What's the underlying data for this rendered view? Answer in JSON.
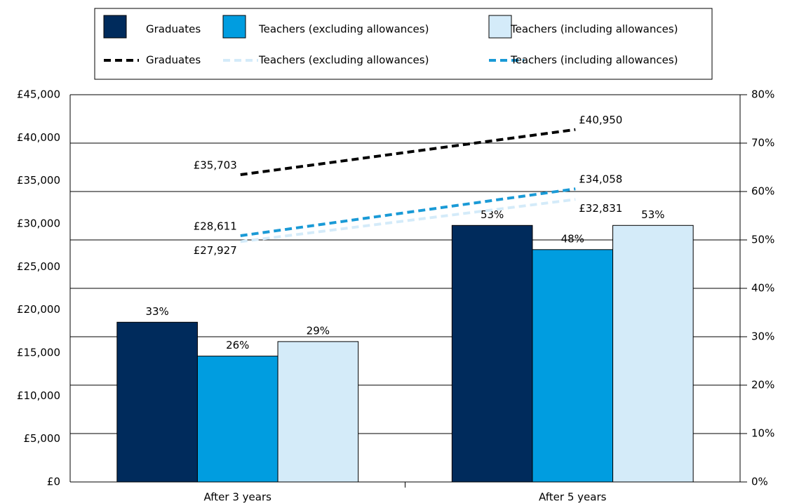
{
  "chart_data": {
    "type": "bar",
    "categories": [
      "After 3 years",
      "After 5 years"
    ],
    "series": [
      {
        "name": "Graduates",
        "type": "bar",
        "axis": "y2",
        "color": "#002b5c",
        "values": [
          33,
          53
        ],
        "value_labels": [
          "33%",
          "53%"
        ]
      },
      {
        "name": "Teachers (excluding allowances)",
        "type": "bar",
        "axis": "y2",
        "color": "#009de0",
        "values": [
          26,
          48
        ],
        "value_labels": [
          "26%",
          "48%"
        ]
      },
      {
        "name": "Teachers (including allowances)",
        "type": "bar",
        "axis": "y2",
        "color": "#d4ebf9",
        "values": [
          29,
          53
        ],
        "value_labels": [
          "29%",
          "53%"
        ]
      },
      {
        "name": "Graduates",
        "type": "line",
        "color": "#000000",
        "values": [
          35703,
          40950
        ],
        "value_labels": [
          "£35,703",
          "£40,950"
        ]
      },
      {
        "name": "Teachers (excluding allowances)",
        "type": "line",
        "color": "#d4ebf9",
        "values": [
          27927,
          32831
        ],
        "value_labels": [
          "£27,927",
          "£32,831"
        ]
      },
      {
        "name": "Teachers (including allowances)",
        "type": "line",
        "color": "#1a9ad6",
        "values": [
          28611,
          34058
        ],
        "value_labels": [
          "£28,611",
          "£34,058"
        ]
      }
    ],
    "ylim": [
      0,
      45000
    ],
    "yticks": [
      {
        "value": 0,
        "label": "£0"
      },
      {
        "value": 5000,
        "label": "£5,000"
      },
      {
        "value": 10000,
        "label": "£10,000"
      },
      {
        "value": 15000,
        "label": "£15,000"
      },
      {
        "value": 20000,
        "label": "£20,000"
      },
      {
        "value": 25000,
        "label": "£25,000"
      },
      {
        "value": 30000,
        "label": "£30,000"
      },
      {
        "value": 35000,
        "label": "£35,000"
      },
      {
        "value": 40000,
        "label": "£40,000"
      },
      {
        "value": 45000,
        "label": "£45,000"
      }
    ],
    "y2lim": [
      0,
      80
    ],
    "y2ticks": [
      {
        "value": 0,
        "label": "0%"
      },
      {
        "value": 10,
        "label": "10%"
      },
      {
        "value": 20,
        "label": "20%"
      },
      {
        "value": 30,
        "label": "30%"
      },
      {
        "value": 40,
        "label": "40%"
      },
      {
        "value": 50,
        "label": "50%"
      },
      {
        "value": 60,
        "label": "60%"
      },
      {
        "value": 70,
        "label": "70%"
      },
      {
        "value": 80,
        "label": "80%"
      }
    ],
    "grid": true
  }
}
